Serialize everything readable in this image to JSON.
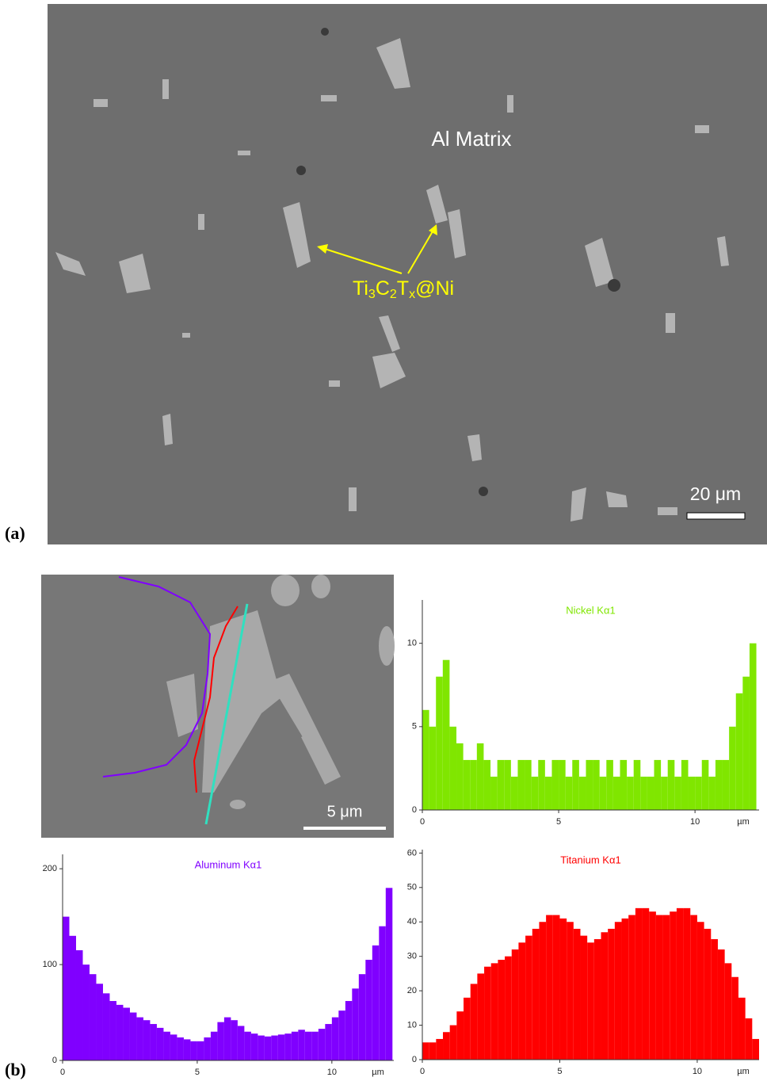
{
  "figure": {
    "panel_a": {
      "label": "(a)",
      "matrix_label": "Al Matrix",
      "particle_label": [
        "Ti",
        "3",
        "C",
        "2",
        "T",
        "x",
        "@Ni"
      ],
      "scale_bar": "20 μm"
    },
    "panel_b": {
      "label": "(b)",
      "scale_bar": "5 μm"
    }
  },
  "chart_data": [
    {
      "type": "histogram",
      "title": "Nickel Kα1",
      "color": "#80e600",
      "xlabel": "µm",
      "xlim": [
        0,
        12.35
      ],
      "ylim": [
        0,
        12.6
      ],
      "xticks": [
        0,
        5,
        10
      ],
      "yticks": [
        0,
        5,
        10
      ],
      "bins": [
        0,
        0.25,
        0.5,
        0.75,
        1,
        1.25,
        1.5,
        1.75,
        2,
        2.25,
        2.5,
        2.75,
        3,
        3.25,
        3.5,
        3.75,
        4,
        4.25,
        4.5,
        4.75,
        5,
        5.25,
        5.5,
        5.75,
        6,
        6.25,
        6.5,
        6.75,
        7,
        7.25,
        7.5,
        7.75,
        8,
        8.25,
        8.5,
        8.75,
        9,
        9.25,
        9.5,
        9.75,
        10,
        10.25,
        10.5,
        10.75,
        11,
        11.25,
        11.5,
        11.75,
        12,
        12.25
      ],
      "values": [
        6,
        5,
        8,
        9,
        5,
        4,
        3,
        3,
        4,
        3,
        2,
        3,
        3,
        2,
        3,
        3,
        2,
        3,
        2,
        3,
        3,
        2,
        3,
        2,
        3,
        3,
        2,
        3,
        2,
        3,
        2,
        3,
        2,
        2,
        3,
        2,
        3,
        2,
        3,
        2,
        2,
        3,
        2,
        3,
        3,
        5,
        7,
        8,
        10
      ]
    },
    {
      "type": "histogram",
      "title": "Aluminum Kα1",
      "color": "#8000ff",
      "xlabel": "µm",
      "xlim": [
        0,
        12.3
      ],
      "ylim": [
        0,
        215
      ],
      "xticks": [
        0,
        5,
        10
      ],
      "yticks": [
        0,
        100,
        200
      ],
      "bins": [
        0,
        0.25,
        0.5,
        0.75,
        1,
        1.25,
        1.5,
        1.75,
        2,
        2.25,
        2.5,
        2.75,
        3,
        3.25,
        3.5,
        3.75,
        4,
        4.25,
        4.5,
        4.75,
        5,
        5.25,
        5.5,
        5.75,
        6,
        6.25,
        6.5,
        6.75,
        7,
        7.25,
        7.5,
        7.75,
        8,
        8.25,
        8.5,
        8.75,
        9,
        9.25,
        9.5,
        9.75,
        10,
        10.25,
        10.5,
        10.75,
        11,
        11.25,
        11.5,
        11.75,
        12,
        12.25
      ],
      "values": [
        150,
        130,
        115,
        100,
        90,
        80,
        70,
        62,
        58,
        55,
        50,
        45,
        42,
        38,
        34,
        30,
        27,
        24,
        22,
        20,
        20,
        24,
        30,
        40,
        45,
        42,
        36,
        30,
        28,
        26,
        25,
        26,
        27,
        28,
        30,
        32,
        30,
        30,
        33,
        38,
        45,
        52,
        62,
        75,
        90,
        105,
        120,
        140,
        180
      ]
    },
    {
      "type": "histogram",
      "title": "Titanium Kα1",
      "color": "#ff0000",
      "xlabel": "µm",
      "xlim": [
        0,
        12.25
      ],
      "ylim": [
        0,
        61
      ],
      "xticks": [
        0,
        5,
        10
      ],
      "yticks": [
        0,
        10,
        20,
        30,
        40,
        50,
        60
      ],
      "bins": [
        0,
        0.25,
        0.5,
        0.75,
        1,
        1.25,
        1.5,
        1.75,
        2,
        2.25,
        2.5,
        2.75,
        3,
        3.25,
        3.5,
        3.75,
        4,
        4.25,
        4.5,
        4.75,
        5,
        5.25,
        5.5,
        5.75,
        6,
        6.25,
        6.5,
        6.75,
        7,
        7.25,
        7.5,
        7.75,
        8,
        8.25,
        8.5,
        8.75,
        9,
        9.25,
        9.5,
        9.75,
        10,
        10.25,
        10.5,
        10.75,
        11,
        11.25,
        11.5,
        11.75,
        12,
        12.25
      ],
      "values": [
        5,
        5,
        6,
        8,
        10,
        14,
        18,
        22,
        25,
        27,
        28,
        29,
        30,
        32,
        34,
        36,
        38,
        40,
        42,
        42,
        41,
        40,
        38,
        36,
        34,
        35,
        37,
        38,
        40,
        41,
        42,
        44,
        44,
        43,
        42,
        42,
        43,
        44,
        44,
        42,
        40,
        38,
        35,
        32,
        28,
        24,
        18,
        12,
        6
      ]
    }
  ]
}
